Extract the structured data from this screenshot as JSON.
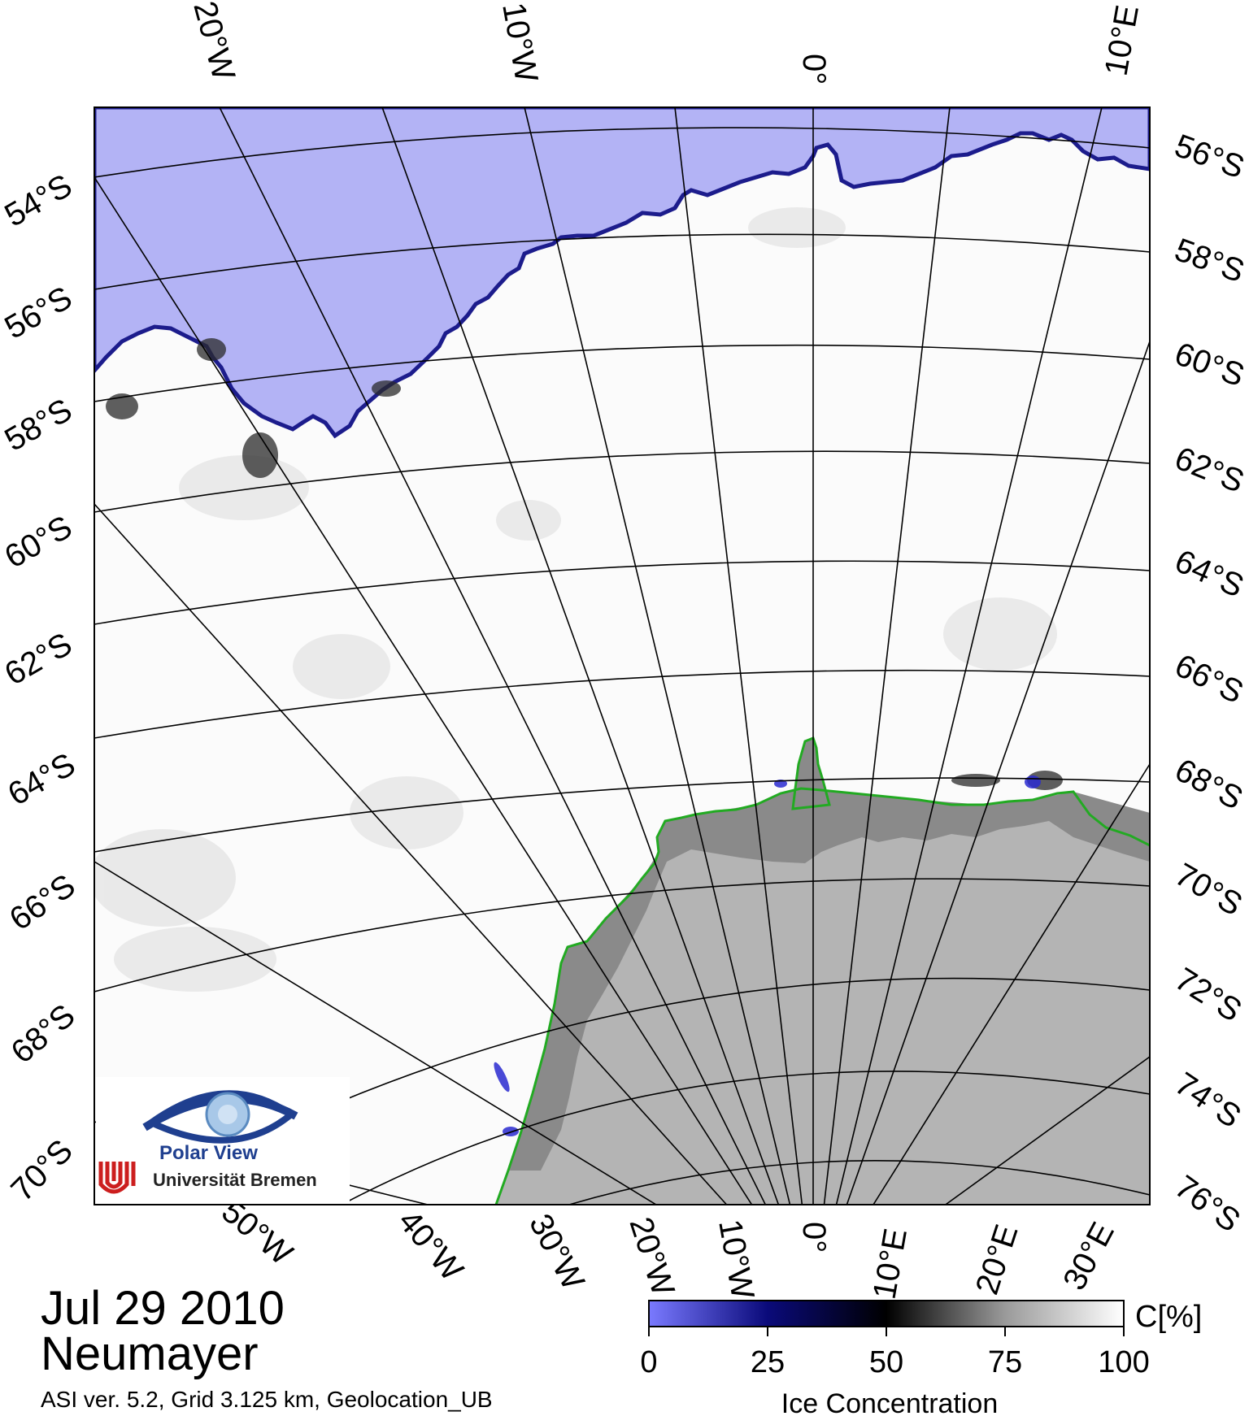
{
  "title": {
    "date": "Jul 29 2010",
    "station": "Neumayer",
    "info": "ASI ver. 5.2,  Grid 3.125 km, Geolocation_UB"
  },
  "logo": {
    "name": "Polar View",
    "university": "Universität Bremen"
  },
  "labels": {
    "top": [
      "20°W",
      "10°W",
      "0°",
      "10°E"
    ],
    "bottom": [
      "50°W",
      "40°W",
      "30°W",
      "20°W",
      "10°W",
      "0°",
      "10°E",
      "20°E",
      "30°E"
    ],
    "left": [
      "54°S",
      "56°S",
      "58°S",
      "60°S",
      "62°S",
      "64°S",
      "66°S",
      "68°S",
      "70°S"
    ],
    "right": [
      "56°S",
      "58°S",
      "60°S",
      "62°S",
      "64°S",
      "66°S",
      "68°S",
      "70°S",
      "72°S",
      "74°S",
      "76°S"
    ]
  },
  "colorbar": {
    "unit": "C[%]",
    "title": "Ice Concentration",
    "ticks": [
      "0",
      "25",
      "50",
      "75",
      "100"
    ],
    "stops": [
      {
        "value": 0,
        "color": "#7a7aff"
      },
      {
        "value": 25,
        "color": "#0a0a7a"
      },
      {
        "value": 50,
        "color": "#000000"
      },
      {
        "value": 75,
        "color": "#9a9a9a"
      },
      {
        "value": 100,
        "color": "#ffffff"
      }
    ]
  },
  "colors": {
    "open_water": "#b3b3f5",
    "ice_edge": "#20209a",
    "ice_shelf": "#8a8a8a",
    "land": "#b4b4b4",
    "coastline": "#22aa22"
  }
}
